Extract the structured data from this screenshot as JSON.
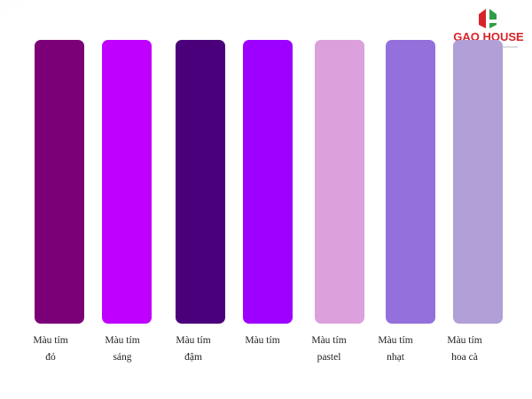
{
  "logo": {
    "text": "GẠO HOUSE"
  },
  "swatches": [
    {
      "color": "#7b0077",
      "lines": [
        "Màu tím",
        "đỏ"
      ]
    },
    {
      "color": "#bf00ff",
      "lines": [
        "Màu tím",
        "sáng"
      ]
    },
    {
      "color": "#4a007b",
      "lines": [
        "Màu tím",
        "đậm"
      ]
    },
    {
      "color": "#9e00ff",
      "lines": [
        "Màu tím"
      ]
    },
    {
      "color": "#dca0dc",
      "lines": [
        "Màu tím",
        "pastel"
      ]
    },
    {
      "color": "#9370db",
      "lines": [
        "Màu tím",
        "nhạt"
      ]
    },
    {
      "color": "#b19fd7",
      "lines": [
        "Màu tím",
        "hoa cà"
      ]
    }
  ]
}
